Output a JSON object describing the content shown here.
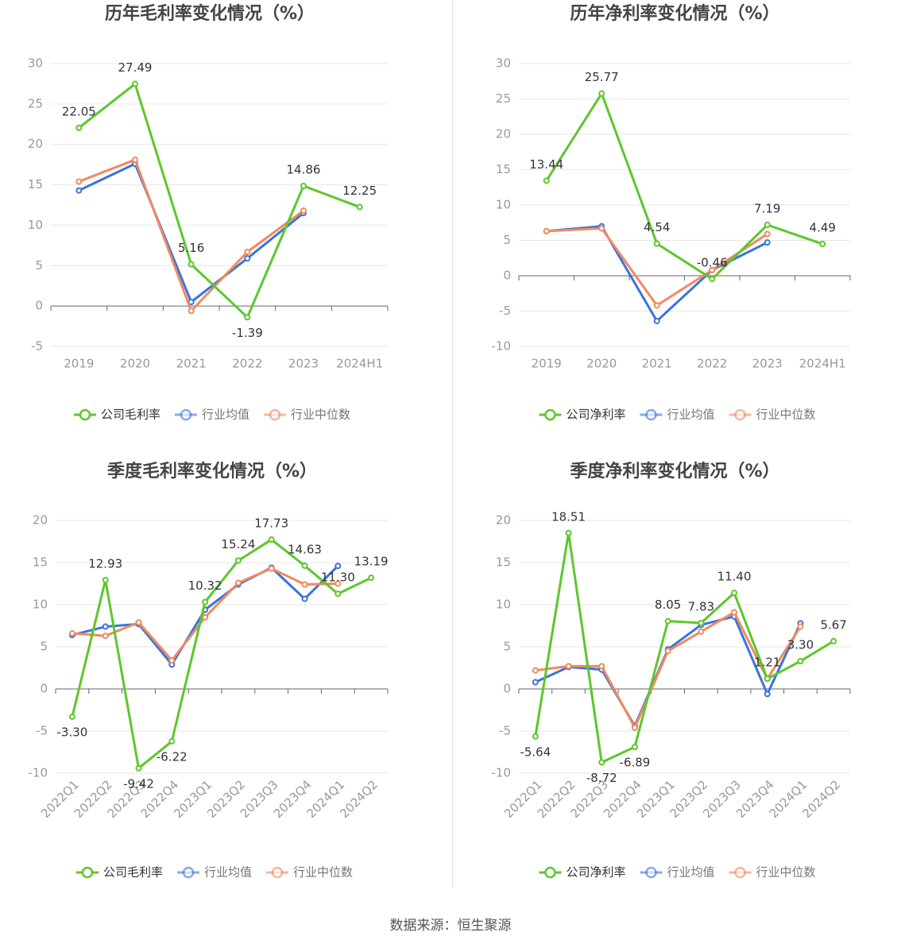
{
  "source": "数据来源：恒生聚源",
  "colors": {
    "company": "#5cc72b",
    "avg": "#3b73dc",
    "median": "#f08a5d",
    "grid": "#e6e6e6",
    "axis": "#666666",
    "tick": "#999999",
    "label": "#333333",
    "title": "#444444"
  },
  "chart_data": [
    {
      "type": "line",
      "title": "历年毛利率变化情况（%）",
      "categories": [
        "2019",
        "2020",
        "2021",
        "2022",
        "2023",
        "2024H1"
      ],
      "ylim": [
        -5,
        30
      ],
      "yticks": [
        -5,
        0,
        5,
        10,
        15,
        20,
        25,
        30
      ],
      "series": [
        {
          "name": "公司毛利率",
          "values": [
            22.05,
            27.49,
            5.16,
            -1.39,
            14.86,
            12.25
          ],
          "labels": [
            "22.05",
            "27.49",
            "5.16",
            "-1.39",
            "14.86",
            "12.25"
          ]
        },
        {
          "name": "行业均值",
          "values": [
            14.3,
            17.6,
            0.5,
            5.9,
            11.5,
            null
          ]
        },
        {
          "name": "行业中位数",
          "values": [
            15.4,
            18.1,
            -0.6,
            6.7,
            11.8,
            null
          ]
        }
      ]
    },
    {
      "type": "line",
      "title": "历年净利率变化情况（%）",
      "categories": [
        "2019",
        "2020",
        "2021",
        "2022",
        "2023",
        "2024H1"
      ],
      "ylim": [
        -10,
        30
      ],
      "yticks": [
        -10,
        -5,
        0,
        5,
        10,
        15,
        20,
        25,
        30
      ],
      "series": [
        {
          "name": "公司净利率",
          "values": [
            13.44,
            25.77,
            4.54,
            -0.46,
            7.19,
            4.49
          ],
          "labels": [
            "13.44",
            "25.77",
            "4.54",
            "-0.46",
            "7.19",
            "4.49"
          ]
        },
        {
          "name": "行业均值",
          "values": [
            6.3,
            7.0,
            -6.4,
            0.8,
            4.7,
            null
          ]
        },
        {
          "name": "行业中位数",
          "values": [
            6.3,
            6.7,
            -4.2,
            0.8,
            5.9,
            null
          ]
        }
      ]
    },
    {
      "type": "line",
      "title": "季度毛利率变化情况（%）",
      "categories": [
        "2022Q1",
        "2022Q2",
        "2022Q3",
        "2022Q4",
        "2023Q1",
        "2023Q2",
        "2023Q3",
        "2023Q4",
        "2024Q1",
        "2024Q2"
      ],
      "ylim": [
        -10,
        20
      ],
      "yticks": [
        -10,
        -5,
        0,
        5,
        10,
        15,
        20
      ],
      "series": [
        {
          "name": "公司毛利率",
          "values": [
            -3.3,
            12.93,
            -9.42,
            -6.22,
            10.32,
            15.24,
            17.73,
            14.63,
            11.3,
            13.19
          ],
          "labels": [
            "-3.30",
            "12.93",
            "-9.42",
            "-6.22",
            "10.32",
            "15.24",
            "17.73",
            "14.63",
            "11.30",
            "13.19"
          ]
        },
        {
          "name": "行业均值",
          "values": [
            6.4,
            7.4,
            7.7,
            2.9,
            9.4,
            12.4,
            14.4,
            10.7,
            14.6,
            null
          ]
        },
        {
          "name": "行业中位数",
          "values": [
            6.6,
            6.3,
            7.9,
            3.4,
            8.5,
            12.6,
            14.3,
            12.4,
            12.5,
            null
          ]
        }
      ]
    },
    {
      "type": "line",
      "title": "季度净利率变化情况（%）",
      "categories": [
        "2022Q1",
        "2022Q2",
        "2022Q3",
        "2022Q4",
        "2023Q1",
        "2023Q2",
        "2023Q3",
        "2023Q4",
        "2024Q1",
        "2024Q2"
      ],
      "ylim": [
        -10,
        20
      ],
      "yticks": [
        -10,
        -5,
        0,
        5,
        10,
        15,
        20
      ],
      "series": [
        {
          "name": "公司净利率",
          "values": [
            -5.64,
            18.51,
            -8.72,
            -6.89,
            8.05,
            7.83,
            11.4,
            1.21,
            3.3,
            5.67
          ],
          "labels": [
            "-5.64",
            "18.51",
            "-8.72",
            "-6.89",
            "8.05",
            "7.83",
            "11.40",
            "1.21",
            "3.30",
            "5.67"
          ]
        },
        {
          "name": "行业均值",
          "values": [
            0.8,
            2.6,
            2.3,
            -4.4,
            4.7,
            7.6,
            8.6,
            -0.6,
            7.8,
            null
          ]
        },
        {
          "name": "行业中位数",
          "values": [
            2.2,
            2.7,
            2.7,
            -4.6,
            4.5,
            6.8,
            9.1,
            1.2,
            7.4,
            null
          ]
        }
      ]
    }
  ]
}
